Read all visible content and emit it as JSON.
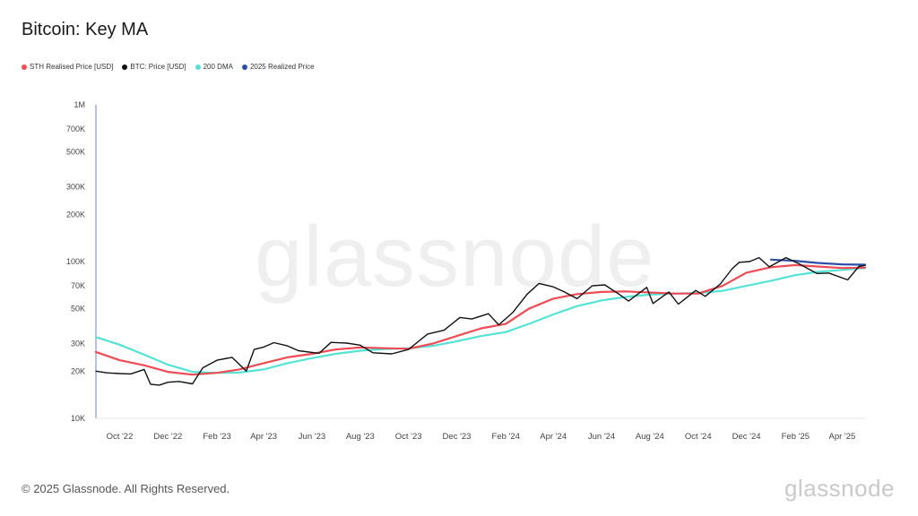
{
  "title": "Bitcoin: Key MA",
  "footer": {
    "copyright": "© 2025 Glassnode. All Rights Reserved.",
    "logo": "glassnode"
  },
  "watermark": "glassnode",
  "chart_data": {
    "type": "line",
    "title": "Bitcoin: Key MA",
    "y_scale": "log",
    "ylim": [
      10000,
      1000000
    ],
    "y_ticks": [
      {
        "label": "1M",
        "value": 1000000
      },
      {
        "label": "700K",
        "value": 700000
      },
      {
        "label": "500K",
        "value": 500000
      },
      {
        "label": "300K",
        "value": 300000
      },
      {
        "label": "200K",
        "value": 200000
      },
      {
        "label": "100K",
        "value": 100000
      },
      {
        "label": "70K",
        "value": 70000
      },
      {
        "label": "50K",
        "value": 50000
      },
      {
        "label": "30K",
        "value": 30000
      },
      {
        "label": "20K",
        "value": 20000
      },
      {
        "label": "10K",
        "value": 10000
      }
    ],
    "xlim": [
      "2022-09-01",
      "2025-04-30"
    ],
    "x_ticks": [
      {
        "label": "Oct '22",
        "date": "2022-10-01"
      },
      {
        "label": "Dec '22",
        "date": "2022-12-01"
      },
      {
        "label": "Feb '23",
        "date": "2023-02-01"
      },
      {
        "label": "Apr '23",
        "date": "2023-04-01"
      },
      {
        "label": "Jun '23",
        "date": "2023-06-01"
      },
      {
        "label": "Aug '23",
        "date": "2023-08-01"
      },
      {
        "label": "Oct '23",
        "date": "2023-10-01"
      },
      {
        "label": "Dec '23",
        "date": "2023-12-01"
      },
      {
        "label": "Feb '24",
        "date": "2024-02-01"
      },
      {
        "label": "Apr '24",
        "date": "2024-04-01"
      },
      {
        "label": "Jun '24",
        "date": "2024-06-01"
      },
      {
        "label": "Aug '24",
        "date": "2024-08-01"
      },
      {
        "label": "Oct '24",
        "date": "2024-10-01"
      },
      {
        "label": "Dec '24",
        "date": "2024-12-01"
      },
      {
        "label": "Feb '25",
        "date": "2025-02-01"
      },
      {
        "label": "Apr '25",
        "date": "2025-04-01"
      }
    ],
    "grid": false,
    "legend_position": "top-left",
    "series": [
      {
        "name": "STH Realised Price [USD]",
        "color": "#ee4b55",
        "points": [
          [
            "2022-09-01",
            26500
          ],
          [
            "2022-10-01",
            23500
          ],
          [
            "2022-11-01",
            21800
          ],
          [
            "2022-12-01",
            19800
          ],
          [
            "2023-01-01",
            19000
          ],
          [
            "2023-02-01",
            19500
          ],
          [
            "2023-03-01",
            20500
          ],
          [
            "2023-04-01",
            22500
          ],
          [
            "2023-05-01",
            24500
          ],
          [
            "2023-06-01",
            25800
          ],
          [
            "2023-07-01",
            27500
          ],
          [
            "2023-08-01",
            28300
          ],
          [
            "2023-09-01",
            28000
          ],
          [
            "2023-10-01",
            27800
          ],
          [
            "2023-11-01",
            30000
          ],
          [
            "2023-12-01",
            33500
          ],
          [
            "2024-01-01",
            37500
          ],
          [
            "2024-02-01",
            40000
          ],
          [
            "2024-03-01",
            50000
          ],
          [
            "2024-04-01",
            58000
          ],
          [
            "2024-05-01",
            62000
          ],
          [
            "2024-06-01",
            64000
          ],
          [
            "2024-07-01",
            64500
          ],
          [
            "2024-08-01",
            63500
          ],
          [
            "2024-09-01",
            62500
          ],
          [
            "2024-10-01",
            62500
          ],
          [
            "2024-11-01",
            70000
          ],
          [
            "2024-12-01",
            85000
          ],
          [
            "2025-01-01",
            92000
          ],
          [
            "2025-02-01",
            95000
          ],
          [
            "2025-03-01",
            93000
          ],
          [
            "2025-04-01",
            91000
          ],
          [
            "2025-04-30",
            91500
          ]
        ]
      },
      {
        "name": "BTC: Price [USD]",
        "color": "#111111",
        "points": [
          [
            "2022-09-01",
            20000
          ],
          [
            "2022-09-15",
            19500
          ],
          [
            "2022-10-01",
            19300
          ],
          [
            "2022-10-15",
            19200
          ],
          [
            "2022-11-01",
            20500
          ],
          [
            "2022-11-09",
            16500
          ],
          [
            "2022-11-20",
            16300
          ],
          [
            "2022-12-01",
            17000
          ],
          [
            "2022-12-15",
            17200
          ],
          [
            "2023-01-01",
            16600
          ],
          [
            "2023-01-14",
            21000
          ],
          [
            "2023-02-01",
            23500
          ],
          [
            "2023-02-20",
            24500
          ],
          [
            "2023-03-10",
            20000
          ],
          [
            "2023-03-20",
            27500
          ],
          [
            "2023-04-01",
            28500
          ],
          [
            "2023-04-14",
            30400
          ],
          [
            "2023-05-01",
            29000
          ],
          [
            "2023-05-15",
            27000
          ],
          [
            "2023-06-10",
            26000
          ],
          [
            "2023-06-25",
            30500
          ],
          [
            "2023-07-15",
            30200
          ],
          [
            "2023-08-01",
            29300
          ],
          [
            "2023-08-17",
            26200
          ],
          [
            "2023-09-10",
            25800
          ],
          [
            "2023-10-01",
            27500
          ],
          [
            "2023-10-25",
            34500
          ],
          [
            "2023-11-15",
            36500
          ],
          [
            "2023-12-05",
            44000
          ],
          [
            "2023-12-20",
            43000
          ],
          [
            "2024-01-10",
            46500
          ],
          [
            "2024-01-23",
            39500
          ],
          [
            "2024-02-10",
            47500
          ],
          [
            "2024-02-28",
            62000
          ],
          [
            "2024-03-14",
            72500
          ],
          [
            "2024-04-01",
            69000
          ],
          [
            "2024-04-15",
            64000
          ],
          [
            "2024-05-01",
            58000
          ],
          [
            "2024-05-20",
            70000
          ],
          [
            "2024-06-05",
            71000
          ],
          [
            "2024-06-25",
            61000
          ],
          [
            "2024-07-05",
            56000
          ],
          [
            "2024-07-28",
            68500
          ],
          [
            "2024-08-05",
            54000
          ],
          [
            "2024-08-25",
            64000
          ],
          [
            "2024-09-06",
            53500
          ],
          [
            "2024-09-28",
            65500
          ],
          [
            "2024-10-10",
            60000
          ],
          [
            "2024-10-29",
            72000
          ],
          [
            "2024-11-13",
            90000
          ],
          [
            "2024-11-22",
            99000
          ],
          [
            "2024-12-05",
            100000
          ],
          [
            "2024-12-17",
            106000
          ],
          [
            "2024-12-30",
            92500
          ],
          [
            "2025-01-20",
            106000
          ],
          [
            "2025-02-05",
            97000
          ],
          [
            "2025-02-28",
            84000
          ],
          [
            "2025-03-15",
            84500
          ],
          [
            "2025-04-08",
            76500
          ],
          [
            "2025-04-22",
            93000
          ],
          [
            "2025-04-30",
            94500
          ]
        ]
      },
      {
        "name": "200 DMA",
        "color": "#54e3d4",
        "points": [
          [
            "2022-09-01",
            33000
          ],
          [
            "2022-10-01",
            29500
          ],
          [
            "2022-11-01",
            25500
          ],
          [
            "2022-12-01",
            22000
          ],
          [
            "2023-01-01",
            19800
          ],
          [
            "2023-02-01",
            19500
          ],
          [
            "2023-03-01",
            19600
          ],
          [
            "2023-04-01",
            20500
          ],
          [
            "2023-05-01",
            22500
          ],
          [
            "2023-06-01",
            24200
          ],
          [
            "2023-07-01",
            25800
          ],
          [
            "2023-08-01",
            27000
          ],
          [
            "2023-09-01",
            27700
          ],
          [
            "2023-10-01",
            28000
          ],
          [
            "2023-11-01",
            29000
          ],
          [
            "2023-12-01",
            31000
          ],
          [
            "2024-01-01",
            33500
          ],
          [
            "2024-02-01",
            35500
          ],
          [
            "2024-03-01",
            40000
          ],
          [
            "2024-04-01",
            46000
          ],
          [
            "2024-05-01",
            52000
          ],
          [
            "2024-06-01",
            56500
          ],
          [
            "2024-07-01",
            59500
          ],
          [
            "2024-08-01",
            61500
          ],
          [
            "2024-09-01",
            62500
          ],
          [
            "2024-10-01",
            63000
          ],
          [
            "2024-11-01",
            65000
          ],
          [
            "2024-12-01",
            70000
          ],
          [
            "2025-01-01",
            75500
          ],
          [
            "2025-02-01",
            82000
          ],
          [
            "2025-03-01",
            86000
          ],
          [
            "2025-04-01",
            88500
          ],
          [
            "2025-04-30",
            91000
          ]
        ]
      },
      {
        "name": "2025 Realized Price",
        "color": "#2c4ea8",
        "points": [
          [
            "2025-01-01",
            103000
          ],
          [
            "2025-02-01",
            101000
          ],
          [
            "2025-03-01",
            98000
          ],
          [
            "2025-04-01",
            96000
          ],
          [
            "2025-04-30",
            95500
          ]
        ]
      }
    ]
  }
}
